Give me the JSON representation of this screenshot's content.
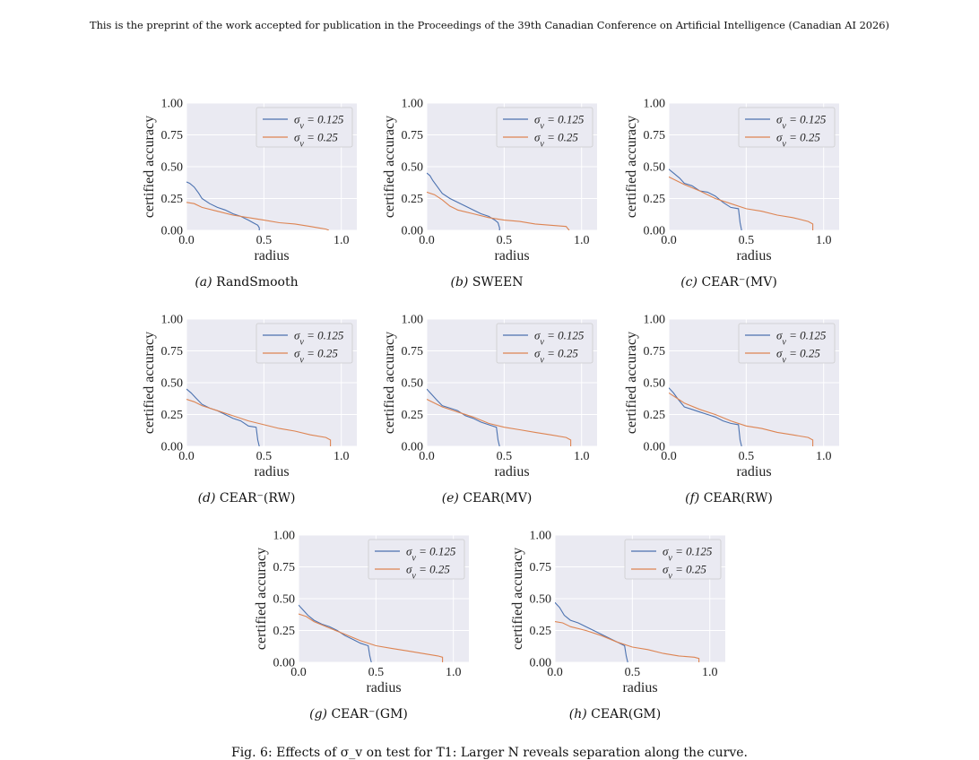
{
  "header": "This is the preprint of the work accepted for publication in the Proceedings of the 39th Canadian Conference on Artificial Intelligence (Canadian AI 2026)",
  "footer_caption": "Fig. 6: Effects of σ_v on test for T1: Larger N reveals separation along the curve.",
  "colors": {
    "series_1": "#4c72b0",
    "series_2": "#dd8452",
    "plot_bg": "#eaeaf2",
    "grid": "#ffffff"
  },
  "chart_data": [
    {
      "type": "line",
      "label": "(a)",
      "method": "RandSmooth",
      "xlabel": "radius",
      "ylabel": "certified accuracy",
      "xlim": [
        0,
        1.1
      ],
      "ylim": [
        0,
        1.0
      ],
      "grid": true,
      "legend_position": "top-right",
      "xticks": [
        "0.0",
        "0.5",
        "1.0"
      ],
      "yticks": [
        "0.00",
        "0.25",
        "0.50",
        "0.75",
        "1.00"
      ],
      "series": [
        {
          "name": "σ_v = 0.125",
          "x": [
            0.0,
            0.02,
            0.05,
            0.08,
            0.1,
            0.15,
            0.2,
            0.25,
            0.3,
            0.35,
            0.4,
            0.43,
            0.46,
            0.47,
            0.47
          ],
          "y": [
            0.38,
            0.37,
            0.34,
            0.29,
            0.25,
            0.21,
            0.18,
            0.16,
            0.13,
            0.11,
            0.08,
            0.06,
            0.04,
            0.02,
            0.0
          ]
        },
        {
          "name": "σ_v = 0.25",
          "x": [
            0.0,
            0.05,
            0.1,
            0.2,
            0.3,
            0.4,
            0.5,
            0.6,
            0.7,
            0.8,
            0.85,
            0.9,
            0.92
          ],
          "y": [
            0.22,
            0.21,
            0.18,
            0.15,
            0.12,
            0.1,
            0.08,
            0.06,
            0.05,
            0.03,
            0.02,
            0.01,
            0.0
          ]
        }
      ]
    },
    {
      "type": "line",
      "label": "(b)",
      "method": "SWEEN",
      "xlabel": "radius",
      "ylabel": "certified accuracy",
      "xlim": [
        0,
        1.1
      ],
      "ylim": [
        0,
        1.0
      ],
      "grid": true,
      "legend_position": "top-right",
      "xticks": [
        "0.0",
        "0.5",
        "1.0"
      ],
      "yticks": [
        "0.00",
        "0.25",
        "0.50",
        "0.75",
        "1.00"
      ],
      "series": [
        {
          "name": "σ_v = 0.125",
          "x": [
            0.0,
            0.02,
            0.04,
            0.07,
            0.1,
            0.15,
            0.2,
            0.25,
            0.3,
            0.35,
            0.4,
            0.44,
            0.46,
            0.47,
            0.47
          ],
          "y": [
            0.45,
            0.43,
            0.39,
            0.34,
            0.29,
            0.25,
            0.22,
            0.19,
            0.16,
            0.13,
            0.11,
            0.08,
            0.06,
            0.02,
            0.0
          ]
        },
        {
          "name": "σ_v = 0.25",
          "x": [
            0.0,
            0.05,
            0.1,
            0.15,
            0.2,
            0.3,
            0.4,
            0.5,
            0.6,
            0.7,
            0.8,
            0.9,
            0.92
          ],
          "y": [
            0.3,
            0.28,
            0.24,
            0.19,
            0.16,
            0.13,
            0.1,
            0.08,
            0.07,
            0.05,
            0.04,
            0.03,
            0.0
          ]
        }
      ]
    },
    {
      "type": "line",
      "label": "(c)",
      "method": "CEAR⁻(MV)",
      "xlabel": "radius",
      "ylabel": "certified accuracy",
      "xlim": [
        0,
        1.1
      ],
      "ylim": [
        0,
        1.0
      ],
      "grid": true,
      "legend_position": "top-right",
      "xticks": [
        "0.0",
        "0.5",
        "1.0"
      ],
      "yticks": [
        "0.00",
        "0.25",
        "0.50",
        "0.75",
        "1.00"
      ],
      "series": [
        {
          "name": "σ_v = 0.125",
          "x": [
            0.0,
            0.03,
            0.07,
            0.1,
            0.15,
            0.2,
            0.25,
            0.3,
            0.35,
            0.4,
            0.45,
            0.46,
            0.47
          ],
          "y": [
            0.48,
            0.45,
            0.41,
            0.37,
            0.35,
            0.31,
            0.3,
            0.27,
            0.22,
            0.18,
            0.17,
            0.06,
            0.0
          ]
        },
        {
          "name": "σ_v = 0.25",
          "x": [
            0.0,
            0.05,
            0.1,
            0.2,
            0.3,
            0.4,
            0.5,
            0.6,
            0.7,
            0.8,
            0.9,
            0.93,
            0.93
          ],
          "y": [
            0.42,
            0.39,
            0.36,
            0.31,
            0.25,
            0.21,
            0.17,
            0.15,
            0.12,
            0.1,
            0.07,
            0.05,
            0.0
          ]
        }
      ]
    },
    {
      "type": "line",
      "label": "(d)",
      "method": "CEAR⁻(RW)",
      "xlabel": "radius",
      "ylabel": "certified accuracy",
      "xlim": [
        0,
        1.1
      ],
      "ylim": [
        0,
        1.0
      ],
      "grid": true,
      "legend_position": "top-right",
      "xticks": [
        "0.0",
        "0.5",
        "1.0"
      ],
      "yticks": [
        "0.00",
        "0.25",
        "0.50",
        "0.75",
        "1.00"
      ],
      "series": [
        {
          "name": "σ_v = 0.125",
          "x": [
            0.0,
            0.03,
            0.06,
            0.1,
            0.15,
            0.2,
            0.25,
            0.3,
            0.35,
            0.4,
            0.45,
            0.46,
            0.47
          ],
          "y": [
            0.45,
            0.42,
            0.38,
            0.33,
            0.3,
            0.28,
            0.25,
            0.22,
            0.2,
            0.16,
            0.15,
            0.05,
            0.0
          ]
        },
        {
          "name": "σ_v = 0.25",
          "x": [
            0.0,
            0.05,
            0.1,
            0.2,
            0.3,
            0.4,
            0.5,
            0.6,
            0.7,
            0.8,
            0.9,
            0.93,
            0.93
          ],
          "y": [
            0.37,
            0.35,
            0.32,
            0.28,
            0.24,
            0.2,
            0.17,
            0.14,
            0.12,
            0.09,
            0.07,
            0.05,
            0.0
          ]
        }
      ]
    },
    {
      "type": "line",
      "label": "(e)",
      "method": "CEAR(MV)",
      "xlabel": "radius",
      "ylabel": "certified accuracy",
      "xlim": [
        0,
        1.1
      ],
      "ylim": [
        0,
        1.0
      ],
      "grid": true,
      "legend_position": "top-right",
      "xticks": [
        "0.0",
        "0.5",
        "1.0"
      ],
      "yticks": [
        "0.00",
        "0.25",
        "0.50",
        "0.75",
        "1.00"
      ],
      "series": [
        {
          "name": "σ_v = 0.125",
          "x": [
            0.0,
            0.03,
            0.06,
            0.1,
            0.15,
            0.2,
            0.25,
            0.3,
            0.35,
            0.4,
            0.45,
            0.46,
            0.47
          ],
          "y": [
            0.45,
            0.41,
            0.37,
            0.32,
            0.3,
            0.28,
            0.24,
            0.22,
            0.19,
            0.17,
            0.15,
            0.05,
            0.0
          ]
        },
        {
          "name": "σ_v = 0.25",
          "x": [
            0.0,
            0.05,
            0.1,
            0.2,
            0.3,
            0.4,
            0.5,
            0.6,
            0.7,
            0.8,
            0.9,
            0.93,
            0.93
          ],
          "y": [
            0.37,
            0.34,
            0.31,
            0.27,
            0.23,
            0.18,
            0.15,
            0.13,
            0.11,
            0.09,
            0.07,
            0.05,
            0.0
          ]
        }
      ]
    },
    {
      "type": "line",
      "label": "(f)",
      "method": "CEAR(RW)",
      "xlabel": "radius",
      "ylabel": "certified accuracy",
      "xlim": [
        0,
        1.1
      ],
      "ylim": [
        0,
        1.0
      ],
      "grid": true,
      "legend_position": "top-right",
      "xticks": [
        "0.0",
        "0.5",
        "1.0"
      ],
      "yticks": [
        "0.00",
        "0.25",
        "0.50",
        "0.75",
        "1.00"
      ],
      "series": [
        {
          "name": "σ_v = 0.125",
          "x": [
            0.0,
            0.03,
            0.06,
            0.1,
            0.15,
            0.2,
            0.25,
            0.3,
            0.35,
            0.4,
            0.45,
            0.46,
            0.47
          ],
          "y": [
            0.46,
            0.42,
            0.37,
            0.31,
            0.29,
            0.27,
            0.25,
            0.23,
            0.2,
            0.18,
            0.17,
            0.05,
            0.0
          ]
        },
        {
          "name": "σ_v = 0.25",
          "x": [
            0.0,
            0.05,
            0.1,
            0.2,
            0.3,
            0.4,
            0.5,
            0.6,
            0.7,
            0.8,
            0.9,
            0.93,
            0.93
          ],
          "y": [
            0.42,
            0.38,
            0.34,
            0.29,
            0.25,
            0.2,
            0.16,
            0.14,
            0.11,
            0.09,
            0.07,
            0.05,
            0.0
          ]
        }
      ]
    },
    {
      "type": "line",
      "label": "(g)",
      "method": "CEAR⁻(GM)",
      "xlabel": "radius",
      "ylabel": "certified accuracy",
      "xlim": [
        0,
        1.1
      ],
      "ylim": [
        0,
        1.0
      ],
      "grid": true,
      "legend_position": "top-right",
      "xticks": [
        "0.0",
        "0.5",
        "1.0"
      ],
      "yticks": [
        "0.00",
        "0.25",
        "0.50",
        "0.75",
        "1.00"
      ],
      "series": [
        {
          "name": "σ_v = 0.125",
          "x": [
            0.0,
            0.03,
            0.06,
            0.1,
            0.15,
            0.2,
            0.25,
            0.3,
            0.35,
            0.4,
            0.45,
            0.46,
            0.47
          ],
          "y": [
            0.45,
            0.41,
            0.37,
            0.33,
            0.3,
            0.28,
            0.25,
            0.21,
            0.18,
            0.15,
            0.13,
            0.05,
            0.0
          ]
        },
        {
          "name": "σ_v = 0.25",
          "x": [
            0.0,
            0.05,
            0.1,
            0.2,
            0.3,
            0.4,
            0.5,
            0.6,
            0.7,
            0.8,
            0.9,
            0.93,
            0.93
          ],
          "y": [
            0.38,
            0.36,
            0.32,
            0.27,
            0.22,
            0.17,
            0.13,
            0.11,
            0.09,
            0.07,
            0.05,
            0.04,
            0.0
          ]
        }
      ]
    },
    {
      "type": "line",
      "label": "(h)",
      "method": "CEAR(GM)",
      "xlabel": "radius",
      "ylabel": "certified accuracy",
      "xlim": [
        0,
        1.1
      ],
      "ylim": [
        0,
        1.0
      ],
      "grid": true,
      "legend_position": "top-right",
      "xticks": [
        "0.0",
        "0.5",
        "1.0"
      ],
      "yticks": [
        "0.00",
        "0.25",
        "0.50",
        "0.75",
        "1.00"
      ],
      "series": [
        {
          "name": "σ_v = 0.125",
          "x": [
            0.0,
            0.03,
            0.06,
            0.1,
            0.15,
            0.2,
            0.25,
            0.3,
            0.35,
            0.4,
            0.45,
            0.46,
            0.47
          ],
          "y": [
            0.47,
            0.43,
            0.37,
            0.33,
            0.31,
            0.28,
            0.25,
            0.22,
            0.19,
            0.16,
            0.13,
            0.05,
            0.0
          ]
        },
        {
          "name": "σ_v = 0.25",
          "x": [
            0.0,
            0.05,
            0.1,
            0.2,
            0.3,
            0.4,
            0.5,
            0.6,
            0.7,
            0.8,
            0.9,
            0.93,
            0.93
          ],
          "y": [
            0.32,
            0.31,
            0.28,
            0.25,
            0.21,
            0.16,
            0.12,
            0.1,
            0.07,
            0.05,
            0.04,
            0.03,
            0.0
          ]
        }
      ]
    }
  ]
}
